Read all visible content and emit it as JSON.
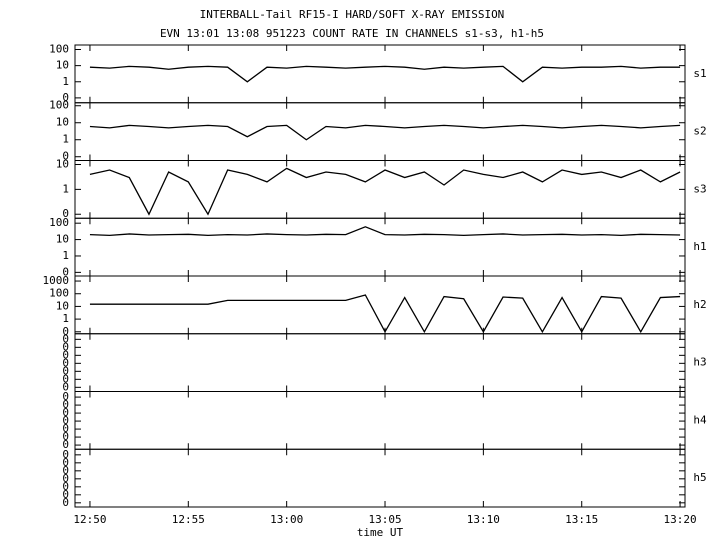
{
  "chart_data": {
    "type": "stacked-line",
    "title": "INTERBALL-Tail RF15-I HARD/SOFT X-RAY EMISSION",
    "subtitle": "EVN 13:01 13:08 951223  COUNT RATE IN CHANNELS s1-s3, h1-h5",
    "xlabel": "time UT",
    "log": true,
    "color": "#000000",
    "xlim": [
      769.24,
      800.25
    ],
    "xticks": [
      {
        "value": 770,
        "label": "12:50"
      },
      {
        "value": 775,
        "label": "12:55"
      },
      {
        "value": 780,
        "label": "13:00"
      },
      {
        "value": 785,
        "label": "13:05"
      },
      {
        "value": 790,
        "label": "13:10"
      },
      {
        "value": 795,
        "label": "13:15"
      },
      {
        "value": 800,
        "label": "13:20"
      }
    ],
    "x": [
      770,
      771,
      772,
      773,
      774,
      775,
      776,
      777,
      778,
      779,
      780,
      781,
      782,
      783,
      784,
      785,
      786,
      787,
      788,
      789,
      790,
      791,
      792,
      793,
      794,
      795,
      796,
      797,
      798,
      799,
      800
    ],
    "panels": [
      {
        "label": "s1",
        "ylim": [
          0.05,
          190
        ],
        "yticks": [
          100,
          10,
          1,
          {
            "value": 0.1,
            "label": "0"
          }
        ],
        "values": [
          8,
          7,
          9,
          8,
          6,
          8,
          9,
          8,
          1,
          8,
          7,
          9,
          8,
          7,
          8,
          9,
          8,
          6,
          8,
          7,
          8,
          9,
          1,
          8,
          7,
          8,
          8,
          9,
          7,
          8,
          8
        ]
      },
      {
        "label": "s2",
        "ylim": [
          0.06,
          150
        ],
        "yticks": [
          100,
          10,
          1,
          {
            "value": 0.1,
            "label": "0"
          }
        ],
        "values": [
          6,
          5,
          7,
          6,
          5,
          6,
          7,
          6,
          1.5,
          6,
          7,
          1,
          6,
          5,
          7,
          6,
          5,
          6,
          7,
          6,
          5,
          6,
          7,
          6,
          5,
          6,
          7,
          6,
          5,
          6,
          7
        ]
      },
      {
        "label": "s3",
        "ylim": [
          0.069,
          14.5
        ],
        "yticks": [
          10,
          1,
          {
            "value": 0.1,
            "label": "0"
          }
        ],
        "values": [
          4,
          6,
          3,
          0.1,
          5,
          2,
          0.1,
          6,
          4,
          2,
          7,
          3,
          5,
          4,
          2,
          6,
          3,
          5,
          1.5,
          6,
          4,
          3,
          5,
          2,
          6,
          4,
          5,
          3,
          6,
          2,
          5
        ]
      },
      {
        "label": "h1",
        "ylim": [
          0.06,
          200
        ],
        "yticks": [
          100,
          10,
          1,
          {
            "value": 0.1,
            "label": "0"
          }
        ],
        "values": [
          20,
          18,
          22,
          19,
          20,
          21,
          18,
          20,
          19,
          22,
          20,
          19,
          21,
          20,
          60,
          20,
          19,
          21,
          20,
          18,
          20,
          22,
          19,
          20,
          21,
          19,
          20,
          18,
          21,
          20,
          19
        ]
      },
      {
        "label": "h2",
        "ylim": [
          0.07,
          2500
        ],
        "yticks": [
          1000,
          100,
          10,
          1,
          {
            "value": 0.1,
            "label": "0"
          }
        ],
        "values": [
          15,
          15,
          15,
          15,
          15,
          15,
          15,
          30,
          30,
          30,
          30,
          30,
          30,
          30,
          80,
          0.1,
          50,
          0.1,
          60,
          40,
          0.1,
          55,
          45,
          0.1,
          50,
          0.1,
          60,
          45,
          0.1,
          50,
          60
        ]
      },
      {
        "label": "h3",
        "ylim": [
          3e-08,
          0.5
        ],
        "yticks": [
          {
            "value": 0.1,
            "label": "0"
          },
          {
            "value": 0.01,
            "label": "0"
          },
          {
            "value": 0.001,
            "label": "0"
          },
          {
            "value": 0.0001,
            "label": "0"
          },
          {
            "value": 1e-05,
            "label": "0"
          },
          {
            "value": 1e-06,
            "label": "0"
          },
          {
            "value": 1e-07,
            "label": "0"
          }
        ]
      },
      {
        "label": "h4",
        "ylim": [
          3e-08,
          0.5
        ],
        "yticks": [
          {
            "value": 0.1,
            "label": "0"
          },
          {
            "value": 0.01,
            "label": "0"
          },
          {
            "value": 0.001,
            "label": "0"
          },
          {
            "value": 0.0001,
            "label": "0"
          },
          {
            "value": 1e-05,
            "label": "0"
          },
          {
            "value": 1e-06,
            "label": "0"
          },
          {
            "value": 1e-07,
            "label": "0"
          }
        ]
      },
      {
        "label": "h5",
        "ylim": [
          3e-08,
          0.5
        ],
        "yticks": [
          {
            "value": 0.1,
            "label": "0"
          },
          {
            "value": 0.01,
            "label": "0"
          },
          {
            "value": 0.001,
            "label": "0"
          },
          {
            "value": 0.0001,
            "label": "0"
          },
          {
            "value": 1e-05,
            "label": "0"
          },
          {
            "value": 1e-06,
            "label": "0"
          },
          {
            "value": 1e-07,
            "label": "0"
          }
        ]
      }
    ]
  }
}
